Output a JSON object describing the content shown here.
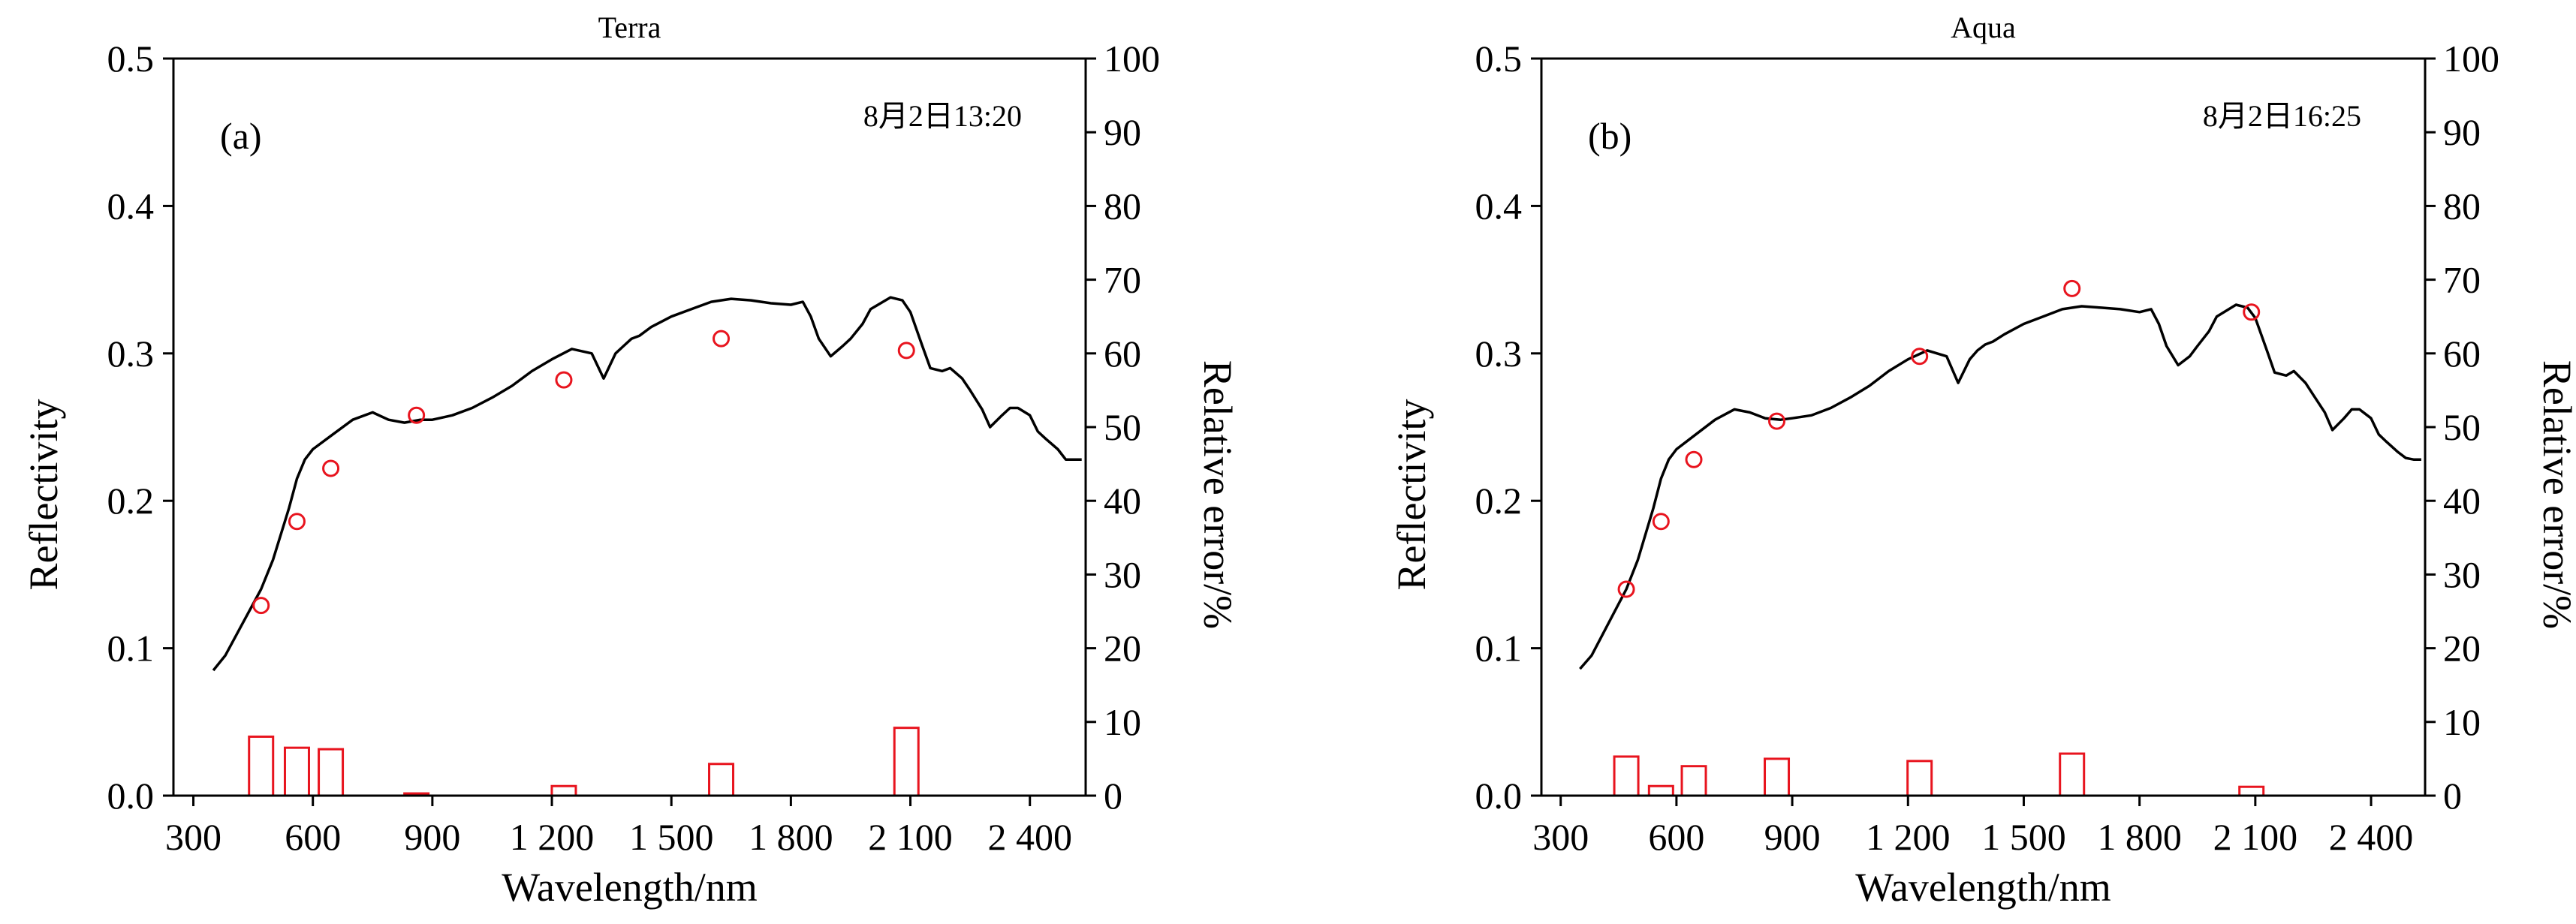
{
  "chart_data": [
    {
      "type": "line",
      "title": "Terra",
      "panel_label": "(a)",
      "annotation": "8月2日13:20",
      "xlabel": "Wavelength/nm",
      "ylabel": "Reflectivity",
      "ylabel_right": "Relative error/%",
      "xlim": [
        250,
        2540
      ],
      "ylim": [
        0,
        0.5
      ],
      "ylim_right": [
        0,
        100
      ],
      "x_ticks": [
        300,
        600,
        900,
        1200,
        1500,
        1800,
        2100,
        2400
      ],
      "x_tick_labels": [
        "300",
        "600",
        "900",
        "1 200",
        "1 500",
        "1 800",
        "2 100",
        "2 400"
      ],
      "y_ticks": [
        0.0,
        0.1,
        0.2,
        0.3,
        0.4,
        0.5
      ],
      "y_tick_labels": [
        "0.0",
        "0.1",
        "0.2",
        "0.3",
        "0.4",
        "0.5"
      ],
      "y_right_ticks": [
        0,
        10,
        20,
        30,
        40,
        50,
        60,
        70,
        80,
        90,
        100
      ],
      "y_right_tick_labels": [
        "0",
        "10",
        "20",
        "30",
        "40",
        "50",
        "60",
        "70",
        "80",
        "90",
        "100"
      ],
      "spectrum": {
        "x": [
          350,
          380,
          420,
          470,
          500,
          540,
          560,
          580,
          600,
          650,
          700,
          750,
          790,
          830,
          870,
          900,
          950,
          1000,
          1050,
          1100,
          1150,
          1200,
          1250,
          1300,
          1330,
          1360,
          1380,
          1400,
          1420,
          1450,
          1500,
          1550,
          1600,
          1650,
          1700,
          1750,
          1800,
          1830,
          1850,
          1870,
          1900,
          1930,
          1950,
          1980,
          2000,
          2050,
          2080,
          2100,
          2130,
          2150,
          2180,
          2200,
          2230,
          2250,
          2280,
          2300,
          2330,
          2350,
          2370,
          2400,
          2420,
          2440,
          2470,
          2490,
          2510,
          2530
        ],
        "y": [
          0.085,
          0.095,
          0.115,
          0.14,
          0.16,
          0.195,
          0.215,
          0.228,
          0.235,
          0.245,
          0.255,
          0.26,
          0.255,
          0.253,
          0.255,
          0.255,
          0.258,
          0.263,
          0.27,
          0.278,
          0.288,
          0.296,
          0.303,
          0.3,
          0.283,
          0.3,
          0.305,
          0.31,
          0.312,
          0.318,
          0.325,
          0.33,
          0.335,
          0.337,
          0.336,
          0.334,
          0.333,
          0.335,
          0.325,
          0.31,
          0.298,
          0.305,
          0.31,
          0.32,
          0.33,
          0.338,
          0.336,
          0.328,
          0.305,
          0.29,
          0.288,
          0.29,
          0.283,
          0.275,
          0.262,
          0.25,
          0.258,
          0.263,
          0.263,
          0.258,
          0.247,
          0.242,
          0.235,
          0.228,
          0.228,
          0.228
        ]
      },
      "points_x": [
        470,
        560,
        645,
        860,
        1230,
        1625,
        2090
      ],
      "points_y": [
        0.129,
        0.186,
        0.222,
        0.258,
        0.282,
        0.31,
        0.302
      ],
      "error_bars_x": [
        470,
        560,
        645,
        860,
        1230,
        1625,
        2090
      ],
      "error_bars_values": [
        8.0,
        6.5,
        6.3,
        0.3,
        1.3,
        4.3,
        9.2
      ],
      "colors": {
        "line": "#000000",
        "points": "#e8141e",
        "bars": "#e8141e"
      }
    },
    {
      "type": "line",
      "title": "Aqua",
      "panel_label": "(b)",
      "annotation": "8月2日16:25",
      "xlabel": "Wavelength/nm",
      "ylabel": "Reflectivity",
      "ylabel_right": "Relative error/%",
      "xlim": [
        250,
        2540
      ],
      "ylim": [
        0,
        0.5
      ],
      "ylim_right": [
        0,
        100
      ],
      "x_ticks": [
        300,
        600,
        900,
        1200,
        1500,
        1800,
        2100,
        2400
      ],
      "x_tick_labels": [
        "300",
        "600",
        "900",
        "1 200",
        "1 500",
        "1 800",
        "2 100",
        "2 400"
      ],
      "y_ticks": [
        0.0,
        0.1,
        0.2,
        0.3,
        0.4,
        0.5
      ],
      "y_tick_labels": [
        "0.0",
        "0.1",
        "0.2",
        "0.3",
        "0.4",
        "0.5"
      ],
      "y_right_ticks": [
        0,
        10,
        20,
        30,
        40,
        50,
        60,
        70,
        80,
        90,
        100
      ],
      "y_right_tick_labels": [
        "0",
        "10",
        "20",
        "30",
        "40",
        "50",
        "60",
        "70",
        "80",
        "90",
        "100"
      ],
      "spectrum": {
        "x": [
          350,
          380,
          420,
          470,
          500,
          540,
          560,
          580,
          600,
          650,
          700,
          750,
          790,
          830,
          870,
          900,
          950,
          1000,
          1050,
          1100,
          1150,
          1200,
          1250,
          1300,
          1330,
          1360,
          1380,
          1400,
          1420,
          1450,
          1500,
          1550,
          1600,
          1650,
          1700,
          1750,
          1800,
          1830,
          1850,
          1870,
          1900,
          1930,
          1950,
          1980,
          2000,
          2050,
          2080,
          2100,
          2130,
          2150,
          2180,
          2200,
          2230,
          2250,
          2280,
          2300,
          2330,
          2350,
          2370,
          2400,
          2420,
          2440,
          2470,
          2490,
          2510,
          2530
        ],
        "y": [
          0.086,
          0.095,
          0.115,
          0.14,
          0.16,
          0.195,
          0.215,
          0.228,
          0.235,
          0.245,
          0.255,
          0.262,
          0.26,
          0.256,
          0.255,
          0.256,
          0.258,
          0.263,
          0.27,
          0.278,
          0.288,
          0.296,
          0.302,
          0.298,
          0.28,
          0.296,
          0.302,
          0.306,
          0.308,
          0.313,
          0.32,
          0.325,
          0.33,
          0.332,
          0.331,
          0.33,
          0.328,
          0.33,
          0.32,
          0.305,
          0.292,
          0.298,
          0.305,
          0.315,
          0.325,
          0.333,
          0.331,
          0.324,
          0.302,
          0.287,
          0.285,
          0.288,
          0.28,
          0.272,
          0.26,
          0.248,
          0.256,
          0.262,
          0.262,
          0.256,
          0.245,
          0.24,
          0.233,
          0.229,
          0.228,
          0.228
        ]
      },
      "points_x": [
        470,
        560,
        645,
        860,
        1230,
        1625,
        2090
      ],
      "points_y": [
        0.14,
        0.186,
        0.228,
        0.254,
        0.298,
        0.344,
        0.328
      ],
      "error_bars_x": [
        470,
        560,
        645,
        860,
        1230,
        1625,
        2090
      ],
      "error_bars_values": [
        5.3,
        1.3,
        4.0,
        5.0,
        4.7,
        5.7,
        1.2
      ],
      "colors": {
        "line": "#000000",
        "points": "#e8141e",
        "bars": "#e8141e"
      }
    }
  ]
}
